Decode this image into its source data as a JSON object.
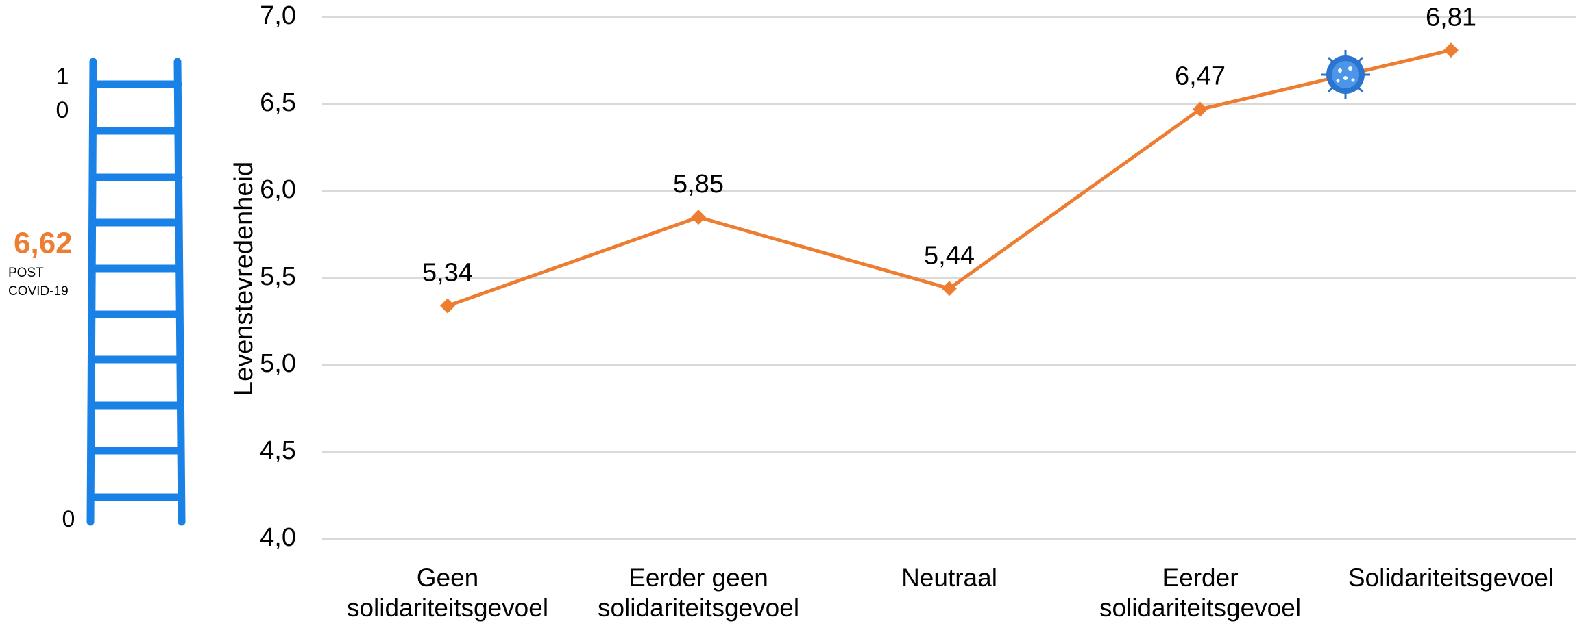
{
  "ladder": {
    "top_label": "10",
    "bottom_label": "0",
    "score": "6,62",
    "score_note": "POST COVID-19"
  },
  "chart_data": {
    "type": "line",
    "y_label": "Levenstevredenheid",
    "categories": [
      "Geen solidariteitsgevoel",
      "Eerder geen solidariteitsgevoel",
      "Neutraal",
      "Eerder solidariteitsgevoel",
      "Solidariteitsgevoel"
    ],
    "values": [
      5.34,
      5.85,
      5.44,
      6.47,
      6.81
    ],
    "value_labels": [
      "5,34",
      "5,85",
      "5,44",
      "6,47",
      "6,81"
    ],
    "color": "#ed7d31",
    "ylim": [
      4,
      7
    ],
    "yticks": [
      {
        "value": 4,
        "label": "4,0"
      },
      {
        "value": 4.5,
        "label": "4,5"
      },
      {
        "value": 5,
        "label": "5,0"
      },
      {
        "value": 5.5,
        "label": "5,5"
      },
      {
        "value": 6,
        "label": "6,0"
      },
      {
        "value": 6.5,
        "label": "6,5"
      },
      {
        "value": 7,
        "label": "7,0"
      }
    ],
    "grid": true
  }
}
